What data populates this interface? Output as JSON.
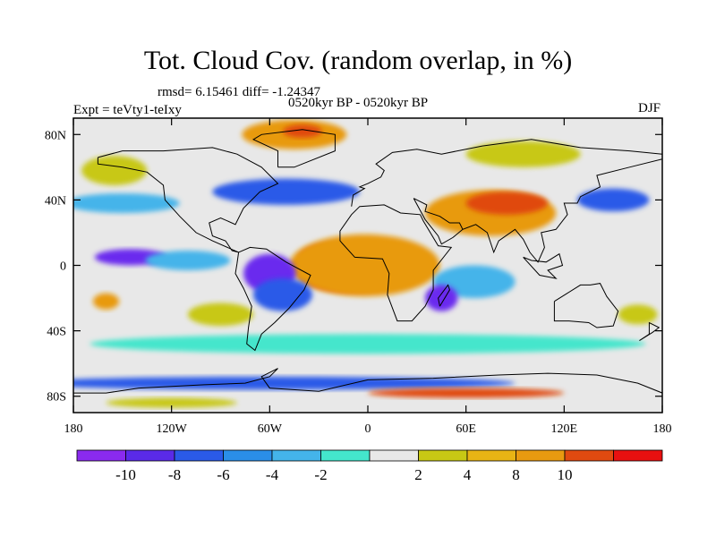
{
  "title": "Tot. Cloud Cov. (random overlap, in %)",
  "stats": "rmsd= 6.15461 diff= -1.24347",
  "period": "0520kyr BP - 0520kyr BP",
  "expt": "Expt = teVty1-teIxy",
  "season": "DJF",
  "map": {
    "type": "filled-contour-map",
    "variable": "total cloud cover difference (%)",
    "lon_range": [
      -180,
      180
    ],
    "lat_range": [
      -90,
      90
    ],
    "x_ticks": [
      {
        "value": -180,
        "label": "180"
      },
      {
        "value": -120,
        "label": "120W"
      },
      {
        "value": -60,
        "label": "60W"
      },
      {
        "value": 0,
        "label": "0"
      },
      {
        "value": 60,
        "label": "60E"
      },
      {
        "value": 120,
        "label": "120E"
      },
      {
        "value": 180,
        "label": "180"
      }
    ],
    "y_ticks": [
      {
        "value": 80,
        "label": "80N"
      },
      {
        "value": 40,
        "label": "40N"
      },
      {
        "value": 0,
        "label": "0"
      },
      {
        "value": -40,
        "label": "40S"
      },
      {
        "value": -80,
        "label": "80S"
      }
    ],
    "background_color": "#e8e8e8",
    "blobs": [
      {
        "region": "tropical Atlantic / Africa",
        "lon": -10,
        "lat": -5,
        "rlon": 32,
        "rlat": 11,
        "color": "#e81010"
      },
      {
        "region": "tropical Atlantic / Africa",
        "lon": -20,
        "lat": 4,
        "rlon": 22,
        "rlat": 9,
        "color": "#e81010"
      },
      {
        "region": "Africa halo",
        "lon": -2,
        "lat": 0,
        "rlon": 46,
        "rlat": 19,
        "color": "#e89a10"
      },
      {
        "region": "Arabia / South Asia",
        "lon": 75,
        "lat": 32,
        "rlon": 40,
        "rlat": 14,
        "color": "#e89a10"
      },
      {
        "region": "Central Asia",
        "lon": 85,
        "lat": 38,
        "rlon": 25,
        "rlat": 7,
        "color": "#e04a10"
      },
      {
        "region": "Greenland",
        "lon": -45,
        "lat": 80,
        "rlon": 32,
        "rlat": 9,
        "color": "#e89a10"
      },
      {
        "region": "Greenland core",
        "lon": -40,
        "lat": 82,
        "rlon": 12,
        "rlat": 4,
        "color": "#e04a10"
      },
      {
        "region": "Siberia",
        "lon": 95,
        "lat": 68,
        "rlon": 35,
        "rlat": 8,
        "color": "#c8c814"
      },
      {
        "region": "North Pacific",
        "lon": -155,
        "lat": 58,
        "rlon": 20,
        "rlat": 9,
        "color": "#c8c814"
      },
      {
        "region": "Pacific band",
        "lon": -145,
        "lat": 5,
        "rlon": 22,
        "rlat": 5,
        "color": "#6a2aee"
      },
      {
        "region": "Pacific band",
        "lon": -110,
        "lat": 3,
        "rlon": 26,
        "rlat": 6,
        "color": "#44b4ea"
      },
      {
        "region": "South America",
        "lon": -60,
        "lat": -5,
        "rlon": 16,
        "rlat": 12,
        "color": "#6a2aee"
      },
      {
        "region": "South America",
        "lon": -52,
        "lat": -18,
        "rlon": 18,
        "rlat": 10,
        "color": "#2a5ae8"
      },
      {
        "region": "North Atlantic",
        "lon": -50,
        "lat": 45,
        "rlon": 45,
        "rlat": 8,
        "color": "#2a5ae8"
      },
      {
        "region": "North Pacific",
        "lon": -150,
        "lat": 38,
        "rlon": 35,
        "rlat": 6,
        "color": "#44b4ea"
      },
      {
        "region": "Western Pacific",
        "lon": 150,
        "lat": 40,
        "rlon": 22,
        "rlat": 7,
        "color": "#2a5ae8"
      },
      {
        "region": "Indian Ocean",
        "lon": 65,
        "lat": -10,
        "rlon": 25,
        "rlat": 10,
        "color": "#44b4ea"
      },
      {
        "region": "Indian Ocean",
        "lon": 45,
        "lat": -20,
        "rlon": 10,
        "rlat": 8,
        "color": "#6a2aee"
      },
      {
        "region": "Pacific warm spot",
        "lon": -160,
        "lat": -22,
        "rlon": 8,
        "rlat": 5,
        "color": "#e89a10"
      },
      {
        "region": "Eastern Pacific",
        "lon": -90,
        "lat": -30,
        "rlon": 20,
        "rlat": 7,
        "color": "#c8c814"
      },
      {
        "region": "Tasman",
        "lon": 165,
        "lat": -30,
        "rlon": 12,
        "rlat": 6,
        "color": "#c8c814"
      },
      {
        "region": "Southern Ocean",
        "lon": 0,
        "lat": -48,
        "rlon": 170,
        "rlat": 6,
        "color": "#44e6cc"
      },
      {
        "region": "Southern Ocean",
        "lon": -60,
        "lat": -72,
        "rlon": 150,
        "rlat": 4,
        "color": "#2a5ae8"
      },
      {
        "region": "Antarctic coast",
        "lon": 60,
        "lat": -78,
        "rlon": 60,
        "rlat": 3,
        "color": "#e04a10"
      },
      {
        "region": "Antarctic",
        "lon": -120,
        "lat": -84,
        "rlon": 40,
        "rlat": 3,
        "color": "#c8c814"
      }
    ]
  },
  "colorbar": {
    "colors": [
      "#8a2aee",
      "#5a2ae8",
      "#2a5ae8",
      "#2a8ee8",
      "#44b4ea",
      "#44e6cc",
      "#e8e8e8",
      "#c8c814",
      "#e8b414",
      "#e89a10",
      "#e04a10",
      "#e81010"
    ],
    "labels": [
      "-10",
      "-8",
      "-6",
      "-4",
      "-2",
      "2",
      "4",
      "8",
      "10"
    ]
  }
}
